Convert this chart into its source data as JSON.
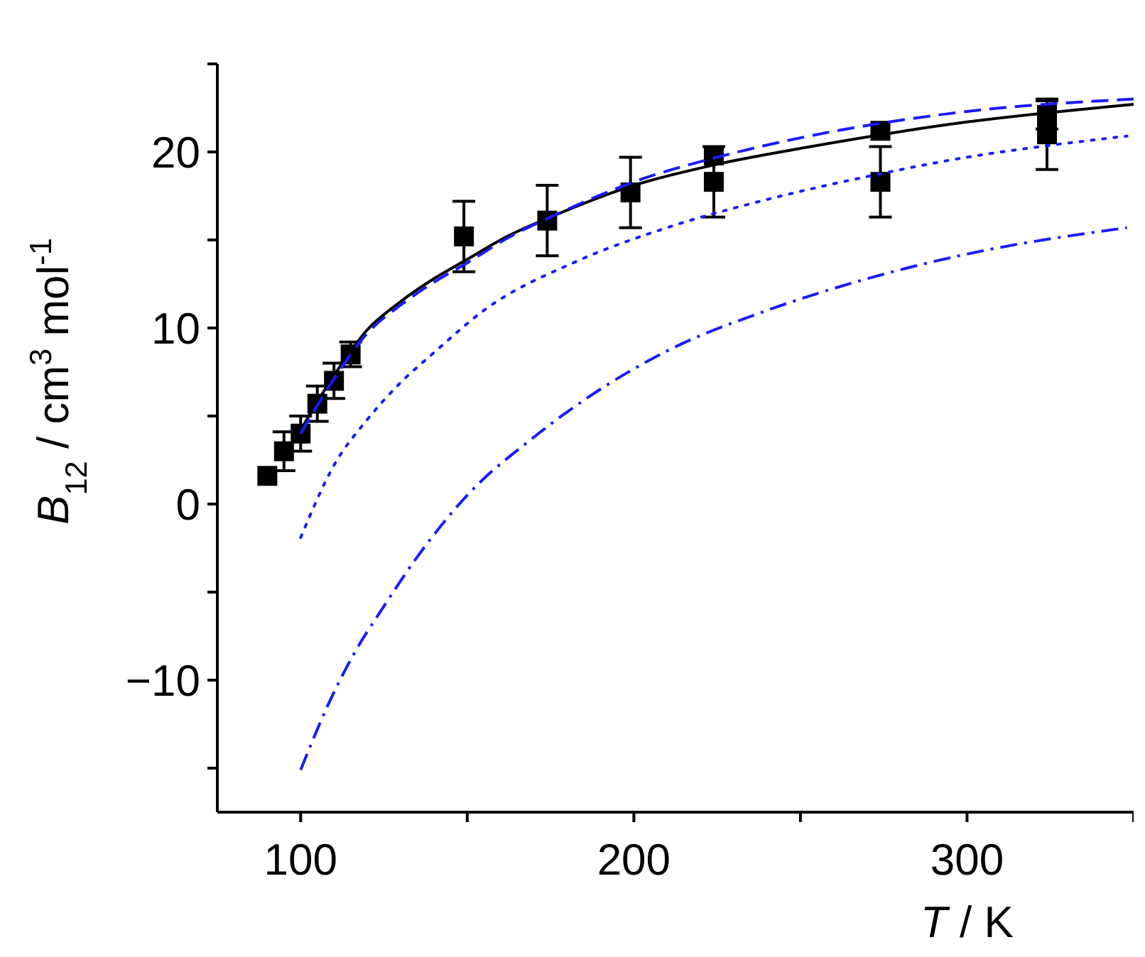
{
  "chart_data": {
    "type": "scatter",
    "xlabel": "T / K",
    "ylabel": "B$_{12}$ / cm$^{3}$ mol$^{-1}$",
    "xlim": [
      75,
      350
    ],
    "xticks": [
      100,
      {
        "value": 150,
        "label": null
      },
      200,
      {
        "value": 250,
        "label": null
      },
      300,
      {
        "value": 350,
        "label": null
      }
    ],
    "ylim": [
      -17.5,
      25
    ],
    "yticks": [
      {
        "value": -15,
        "label": null
      },
      {
        "value": -10,
        "label": "−10"
      },
      {
        "value": -5,
        "label": null
      },
      0,
      {
        "value": 5,
        "label": null
      },
      10,
      {
        "value": 15,
        "label": null
      },
      20,
      {
        "value": 25,
        "label": null
      }
    ],
    "grid": false,
    "series": [
      {
        "type": "scatter",
        "color": "#000000",
        "marker": "square",
        "x": [
          90,
          95,
          100,
          105,
          110,
          115,
          149,
          174,
          199,
          224,
          224,
          274,
          274,
          324,
          324
        ],
        "values": [
          1.6,
          3.0,
          4.0,
          5.7,
          7.0,
          8.5,
          15.2,
          16.1,
          17.7,
          19.8,
          18.3,
          21.2,
          18.3,
          22.1,
          21.0
        ],
        "errors": [
          null,
          1.1,
          1.0,
          1.0,
          1.0,
          0.7,
          2.0,
          2.0,
          2.0,
          null,
          2.0,
          null,
          2.0,
          0.8,
          2.0
        ]
      },
      {
        "type": "line",
        "color": "#000000",
        "line_style": "solid",
        "marker": "none",
        "x": [
          100,
          110,
          120,
          130,
          140,
          150,
          162,
          175,
          200,
          225,
          250,
          300,
          350
        ],
        "values": [
          4.2,
          7.3,
          9.9,
          11.5,
          12.8,
          13.9,
          15.2,
          16.3,
          18.1,
          19.3,
          20.2,
          21.7,
          22.7
        ]
      },
      {
        "type": "line",
        "color": "#1a1aff",
        "line_style": "dashed",
        "marker": "none",
        "x": [
          100,
          110,
          120,
          130,
          140,
          150,
          162,
          175,
          200,
          225,
          250,
          300,
          350
        ],
        "values": [
          4.0,
          7.1,
          9.7,
          11.3,
          12.6,
          13.7,
          15.1,
          16.3,
          18.3,
          19.7,
          20.8,
          22.3,
          23.0
        ]
      },
      {
        "type": "line",
        "color": "#1a1aff",
        "line_style": "dotted",
        "marker": "none",
        "x": [
          100,
          110,
          120,
          130,
          140,
          155,
          183,
          210,
          240,
          270,
          300,
          326,
          348
        ],
        "values": [
          -1.9,
          2.2,
          4.8,
          6.9,
          8.6,
          11.0,
          13.8,
          15.7,
          17.3,
          18.6,
          19.7,
          20.4,
          20.9
        ]
      },
      {
        "type": "line",
        "color": "#1a1aff",
        "line_style": "dashdot",
        "marker": "none",
        "x": [
          100,
          108,
          116,
          125,
          135,
          150,
          170,
          185,
          210,
          240,
          270,
          300,
          348
        ],
        "values": [
          -15.1,
          -11.5,
          -8.5,
          -5.8,
          -3.0,
          0.5,
          3.8,
          5.9,
          8.7,
          11.0,
          12.8,
          14.2,
          15.7
        ]
      }
    ]
  }
}
